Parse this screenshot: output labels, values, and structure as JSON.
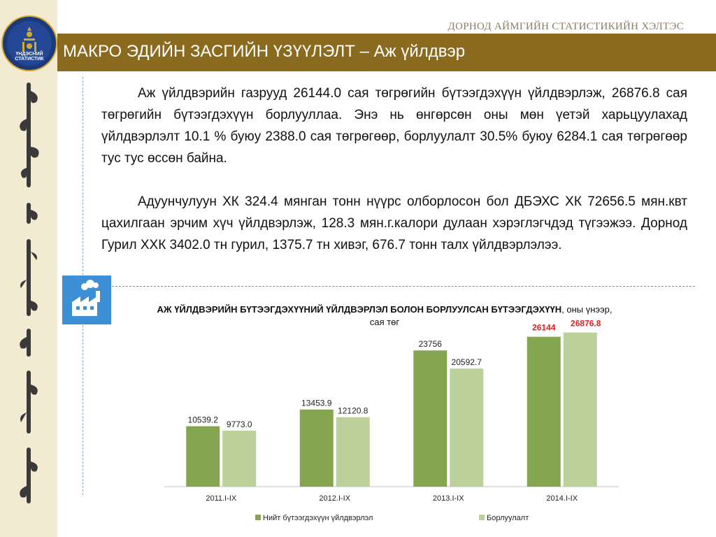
{
  "header": {
    "office": "ДОРНОД АЙМГИЙН СТАТИСТИКИЙН ХЭЛТЭС",
    "title": "МАКРО ЭДИЙН ЗАСГИЙН ҮЗҮҮЛЭЛТ – Аж үйлдвэр",
    "logo_text": "ҮНДЭСНИЙ СТАТИСТИК",
    "accent": "#8a6a1f"
  },
  "body": {
    "paragraph1": "Аж үйлдвэрийн газрууд 26144.0 сая төгрөгийн бүтээгдэхүүн үйлдвэрлэж, 26876.8 сая төгрөгийн бүтээгдэхүүн борлууллаа. Энэ нь өнгөрсөн оны мөн үетэй харьцуулахад үйлдвэрлэлт 10.1 % буюу 2388.0 сая төгрөгөөр, борлуулалт 30.5% буюу 6284.1 сая төгрөгөөр тус тус өссөн байна.",
    "paragraph2": "Адуунчулуун ХК 324.4 мянган тонн нүүрс олборлосон бол ДБЭХС ХК 72656.5 мян.квт цахилгаан эрчим хүч үйлдвэрлэж, 128.3 мян.г.калори дулаан хэрэглэгчдэд түгээжээ. Дорнод Гурил ХХК 3402.0 тн гурил, 1375.7 тн хивэг, 676.7 тонн талх үйлдвэрлэлээ."
  },
  "icons": {
    "factory": "factory-icon"
  },
  "chart_data": {
    "type": "bar",
    "title": "АЖ ҮЙЛДВЭРИЙН БҮТЭЭГДЭХҮҮНИЙ ҮЙЛДВЭРЛЭЛ БОЛОН БОРЛУУЛСАН БҮТЭЭГДЭХҮҮН",
    "title_suffix": ", оны үнээр, сая төг",
    "categories": [
      "2011.I-IX",
      "2012.I-IX",
      "2013.I-IX",
      "2014.I-IX"
    ],
    "series": [
      {
        "name": "Нийт бүтээгдэхүүн үйлдвэрлэл",
        "values": [
          10539.2,
          13453.9,
          23756,
          26144
        ],
        "labels": [
          "10539.2",
          "13453.9",
          "23756",
          "26144"
        ],
        "color": "#86a550"
      },
      {
        "name": "Борлуулалт",
        "values": [
          9773.0,
          12120.8,
          20592.7,
          26876.8
        ],
        "labels": [
          "9773.0",
          "12120.8",
          "20592.7",
          "26876.8"
        ],
        "color": "#bcd09a"
      }
    ],
    "highlight_color": "#e02020",
    "ylim": [
      0,
      30000
    ],
    "grid": false,
    "legend": "bottom"
  }
}
